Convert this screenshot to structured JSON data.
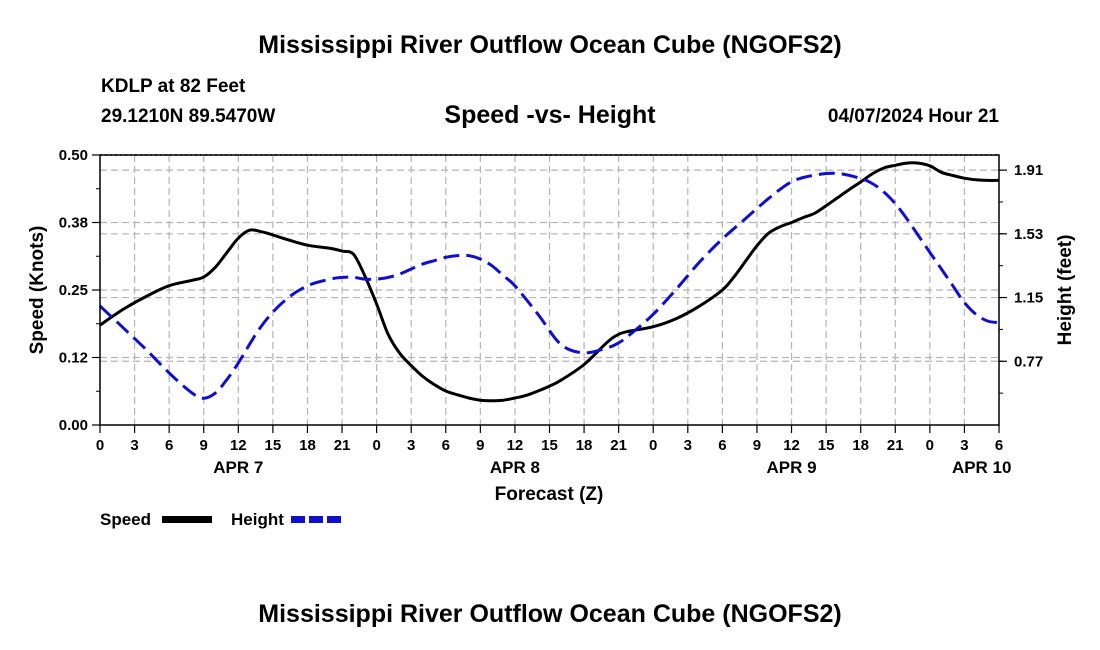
{
  "page": {
    "title": "Mississippi River Outflow Ocean Cube (NGOFS2)",
    "footer_title": "Mississippi River Outflow Ocean Cube (NGOFS2)",
    "station": "KDLP at 82 Feet",
    "location": "29.1210N  89.5470W",
    "subtitle": "Speed -vs- Height",
    "datetime": "04/07/2024 Hour 21"
  },
  "colors": {
    "speed": "#000000",
    "height": "#1010cc",
    "grid": "#b4b4b4"
  },
  "chart_data": {
    "type": "line",
    "title": "Speed -vs- Height",
    "xlabel": "Forecast (Z)",
    "ylabel": "Speed (Knots)",
    "y2label": "Height (feet)",
    "x_hours_range": [
      0,
      78
    ],
    "x_tick_labels": [
      "0",
      "3",
      "6",
      "9",
      "12",
      "15",
      "18",
      "21",
      "0",
      "3",
      "6",
      "9",
      "12",
      "15",
      "18",
      "21",
      "0",
      "3",
      "6",
      "9",
      "12",
      "15",
      "18",
      "21",
      "0",
      "3",
      "6"
    ],
    "date_labels": [
      {
        "label": "APR 7",
        "hour": 12
      },
      {
        "label": "APR 8",
        "hour": 36
      },
      {
        "label": "APR 9",
        "hour": 60
      },
      {
        "label": "APR 10",
        "hour": 76.5
      }
    ],
    "ylim": [
      0,
      0.5
    ],
    "y_ticks": [
      "0.00",
      "0.12",
      "0.25",
      "0.38",
      "0.50"
    ],
    "y2lim": [
      0.39,
      2.0
    ],
    "y2_ticks": [
      "0.77",
      "1.15",
      "1.53",
      "1.91"
    ],
    "grid": true,
    "legend": {
      "position": "bottom-left",
      "speed_label": "Speed",
      "height_label": "Height"
    },
    "series": [
      {
        "name": "Speed",
        "axis": "left",
        "x": [
          0,
          2,
          4,
          6,
          8,
          9,
          10,
          11,
          12,
          13,
          14,
          15,
          16,
          18,
          20,
          21,
          22,
          23,
          24,
          25,
          26,
          27,
          28,
          29,
          30,
          31,
          32,
          33,
          34,
          35,
          36,
          37,
          38,
          39,
          40,
          42,
          44,
          45,
          46,
          48,
          50,
          52,
          54,
          55,
          56,
          57,
          58,
          59,
          60,
          61,
          62,
          63,
          64,
          65,
          66,
          67,
          68,
          69,
          70,
          71,
          72,
          73,
          74,
          75,
          76,
          77,
          78
        ],
        "values": [
          0.185,
          0.214,
          0.238,
          0.258,
          0.268,
          0.274,
          0.292,
          0.319,
          0.346,
          0.361,
          0.358,
          0.352,
          0.345,
          0.333,
          0.327,
          0.322,
          0.316,
          0.275,
          0.224,
          0.168,
          0.133,
          0.11,
          0.09,
          0.075,
          0.063,
          0.056,
          0.05,
          0.046,
          0.045,
          0.046,
          0.05,
          0.055,
          0.063,
          0.072,
          0.083,
          0.112,
          0.153,
          0.168,
          0.174,
          0.182,
          0.197,
          0.22,
          0.25,
          0.274,
          0.303,
          0.332,
          0.355,
          0.367,
          0.375,
          0.384,
          0.392,
          0.406,
          0.421,
          0.436,
          0.45,
          0.465,
          0.476,
          0.481,
          0.485,
          0.485,
          0.48,
          0.468,
          0.462,
          0.457,
          0.454,
          0.453,
          0.453
        ]
      },
      {
        "name": "Height",
        "axis": "right",
        "x": [
          0,
          2,
          4,
          6,
          8,
          9,
          10,
          11,
          12,
          14,
          16,
          18,
          20,
          21,
          22,
          23,
          24,
          25,
          26,
          27,
          28,
          29,
          30,
          31,
          32,
          33,
          34,
          35,
          36,
          38,
          40,
          42,
          44,
          45,
          46,
          48,
          50,
          52,
          54,
          56,
          58,
          60,
          62,
          64,
          66,
          67,
          68,
          69,
          70,
          71,
          72,
          73,
          74,
          75,
          76,
          77,
          78
        ],
        "values": [
          1.1,
          0.97,
          0.84,
          0.7,
          0.58,
          0.55,
          0.58,
          0.66,
          0.76,
          0.98,
          1.13,
          1.22,
          1.26,
          1.27,
          1.27,
          1.26,
          1.26,
          1.27,
          1.29,
          1.32,
          1.35,
          1.37,
          1.39,
          1.4,
          1.4,
          1.38,
          1.34,
          1.28,
          1.22,
          1.05,
          0.87,
          0.82,
          0.85,
          0.88,
          0.93,
          1.05,
          1.2,
          1.36,
          1.5,
          1.62,
          1.74,
          1.84,
          1.88,
          1.89,
          1.86,
          1.83,
          1.78,
          1.71,
          1.62,
          1.52,
          1.42,
          1.32,
          1.22,
          1.12,
          1.05,
          1.01,
          1.0
        ]
      }
    ]
  }
}
